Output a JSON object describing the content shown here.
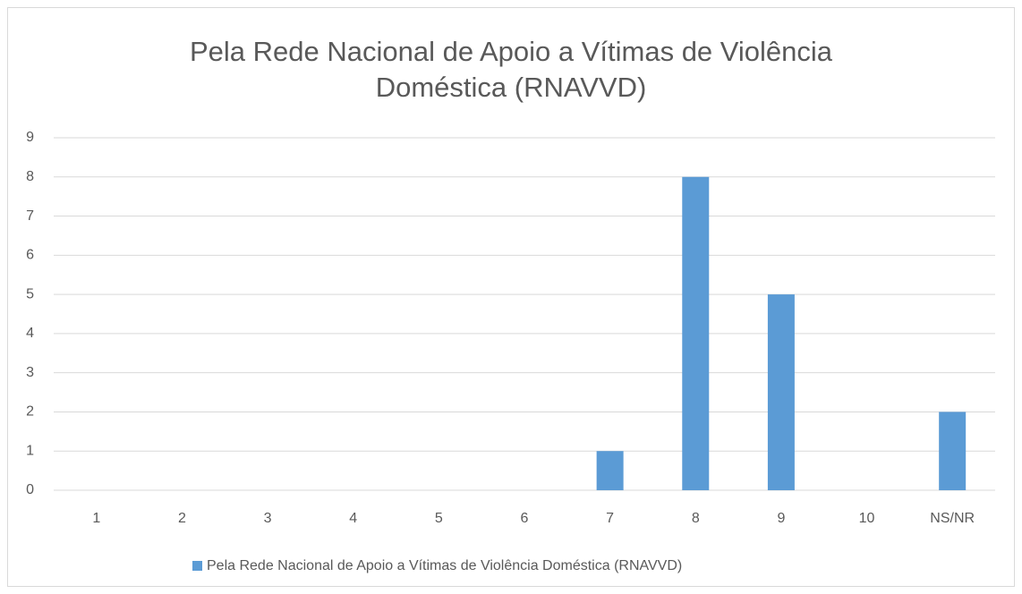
{
  "chart_data": {
    "type": "bar",
    "title": "Pela Rede Nacional de Apoio a Vítimas de Violência Doméstica (RNAVVD)",
    "categories": [
      "1",
      "2",
      "3",
      "4",
      "5",
      "6",
      "7",
      "8",
      "9",
      "10",
      "NS/NR"
    ],
    "series": [
      {
        "name": "Pela Rede Nacional de Apoio a Vítimas de Violência Doméstica (RNAVVD)",
        "color": "#5b9bd5",
        "values": [
          0,
          0,
          0,
          0,
          0,
          0,
          1,
          8,
          5,
          0,
          2
        ]
      }
    ],
    "ylim": [
      0,
      9
    ],
    "yticks": [
      0,
      1,
      2,
      3,
      4,
      5,
      6,
      7,
      8,
      9
    ],
    "grid": true,
    "legend": "bottom"
  }
}
